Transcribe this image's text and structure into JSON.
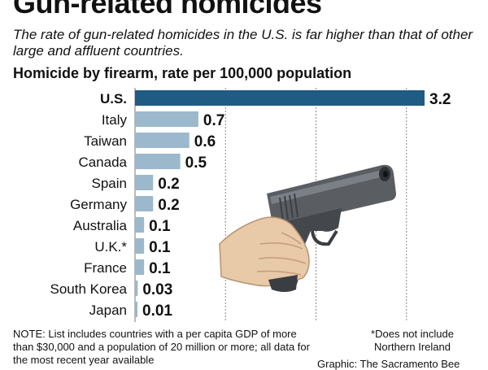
{
  "header": {
    "title": "Gun-related homicides",
    "subtitle": "The rate of gun-related homicides in the U.S. is far higher than that of other large and affluent countries."
  },
  "chart_data": {
    "type": "bar",
    "orientation": "horizontal",
    "title": "Homicide by firearm, rate per 100,000 population",
    "categories": [
      "U.S.",
      "Italy",
      "Taiwan",
      "Canada",
      "Spain",
      "Germany",
      "Australia",
      "U.K.*",
      "France",
      "South Korea",
      "Japan"
    ],
    "values": [
      3.2,
      0.7,
      0.6,
      0.5,
      0.2,
      0.2,
      0.1,
      0.1,
      0.1,
      0.03,
      0.01
    ],
    "value_labels": [
      "3.2",
      "0.7",
      "0.6",
      "0.5",
      "0.2",
      "0.2",
      "0.1",
      "0.1",
      "0.1",
      "0.03",
      "0.01"
    ],
    "xlim": [
      0,
      3.2
    ],
    "grid": true,
    "highlight_category": "U.S.",
    "colors": {
      "highlight": "#1f5b82",
      "bar": "#9cb8cc",
      "grid": "#888888"
    }
  },
  "notes": {
    "note": "NOTE: List includes countries with a per capita GDP of more than $30,000 and a population of 20 million or more; all data for the most recent year available",
    "footnote": "*Does not include Northern Ireland",
    "credit": "Graphic: The Sacramento Bee"
  },
  "illustration": {
    "icon": "handgun-icon"
  }
}
